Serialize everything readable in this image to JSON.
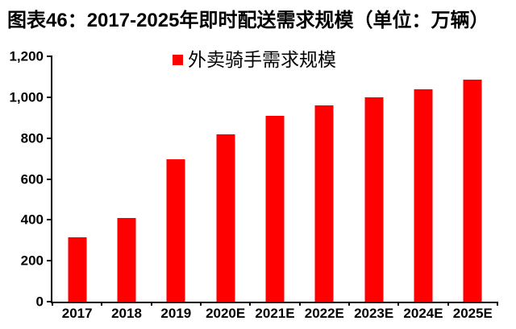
{
  "title": "图表46：2017-2025年即时配送需求规模（单位：万辆）",
  "chart_data": {
    "type": "bar",
    "title": "图表46：2017-2025年即时配送需求规模（单位：万辆）",
    "unit": "万辆",
    "categories": [
      "2017",
      "2018",
      "2019",
      "2020E",
      "2021E",
      "2022E",
      "2023E",
      "2024E",
      "2025E"
    ],
    "series": [
      {
        "name": "外卖骑手需求规模",
        "values": [
          315,
          410,
          695,
          820,
          910,
          960,
          1000,
          1040,
          1085
        ]
      }
    ],
    "xlabel": "",
    "ylabel": "",
    "ylim": [
      0,
      1200
    ],
    "yticks": [
      0,
      200,
      400,
      600,
      800,
      1000,
      1200
    ],
    "ytick_labels": [
      "0",
      "200",
      "400",
      "600",
      "800",
      "1,000",
      "1,200"
    ],
    "grid": false,
    "legend_position": "top-center",
    "colors": {
      "bar": "#ff0000",
      "legend_swatch": "#ff0000",
      "axis": "#000000",
      "text": "#000000",
      "background": "#ffffff"
    }
  }
}
